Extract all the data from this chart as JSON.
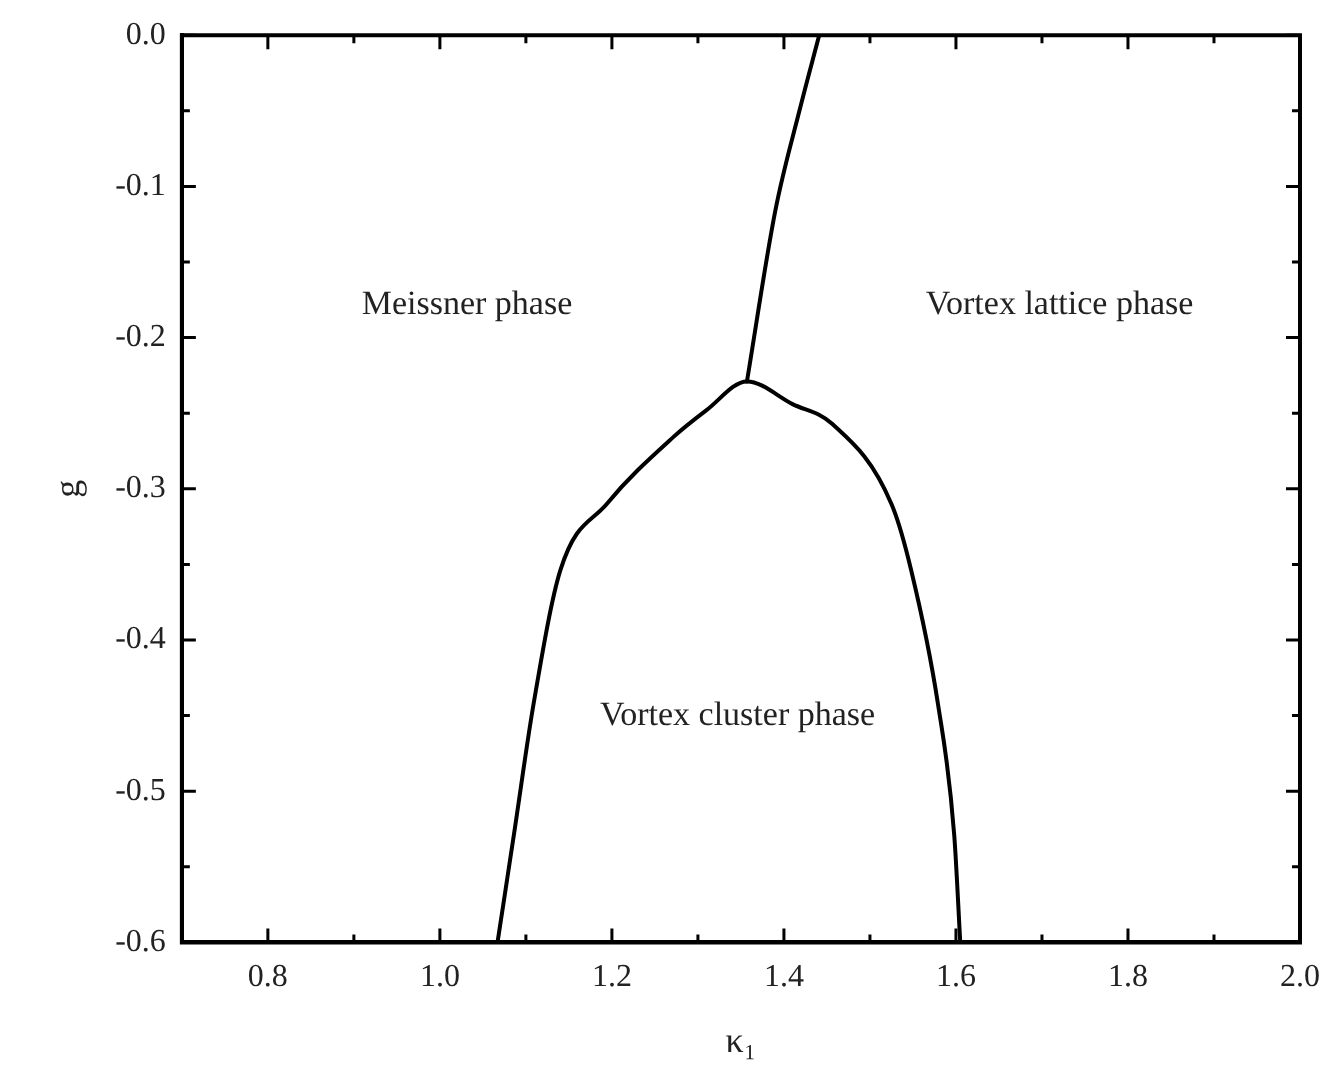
{
  "chart_data": {
    "type": "line",
    "xlabel": "κ₁",
    "ylabel": "g",
    "xlim": [
      0.7,
      2.0
    ],
    "ylim": [
      -0.6,
      0.0
    ],
    "xticks": [
      0.8,
      {
        "value": 0.9,
        "label": null
      },
      "1.0",
      {
        "value": 1.1,
        "label": null
      },
      1.2,
      {
        "value": 1.3,
        "label": null
      },
      1.4,
      {
        "value": 1.5,
        "label": null
      },
      1.6,
      {
        "value": 1.7,
        "label": null
      },
      1.8,
      {
        "value": 1.9,
        "label": null
      },
      "2.0"
    ],
    "yticks": [
      -0.6,
      {
        "value": -0.55,
        "label": null
      },
      -0.5,
      {
        "value": -0.45,
        "label": null
      },
      -0.4,
      {
        "value": -0.35,
        "label": null
      },
      -0.3,
      {
        "value": -0.25,
        "label": null
      },
      -0.2,
      {
        "value": -0.15,
        "label": null
      },
      -0.1,
      {
        "value": -0.05,
        "label": null
      },
      "0.0"
    ],
    "grid": false,
    "legend": false,
    "marker": "none",
    "line_style": "solid",
    "series": [
      {
        "color": "#000000",
        "x": [
          1.357,
          1.39,
          1.418,
          1.441
        ],
        "values": [
          -0.229,
          -0.116,
          -0.05,
          0.0
        ]
      },
      {
        "color": "#000000",
        "x": [
          1.067,
          1.086,
          1.109,
          1.14,
          1.194,
          1.271,
          1.31,
          1.357,
          1.41,
          1.456,
          1.525,
          1.548,
          1.579,
          1.598,
          1.605
        ],
        "values": [
          -0.6,
          -0.529,
          -0.442,
          -0.354,
          -0.31,
          -0.266,
          -0.248,
          -0.229,
          -0.244,
          -0.257,
          -0.31,
          -0.354,
          -0.442,
          -0.529,
          -0.6
        ]
      }
    ],
    "annotations": [
      "Meissner phase",
      "Vortex lattice phase",
      "Vortex cluster phase"
    ]
  }
}
